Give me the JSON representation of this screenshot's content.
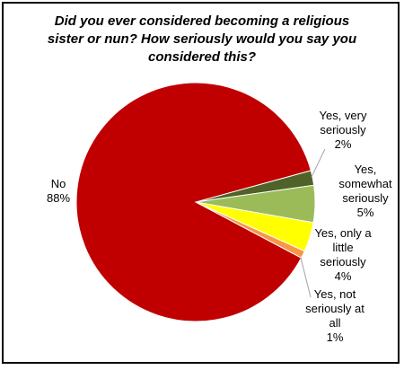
{
  "chart_data": {
    "type": "pie",
    "title_lines": [
      "Did you ever considered becoming a religious",
      "sister or nun? How seriously would you say you",
      "considered this?"
    ],
    "slices": [
      {
        "label_lines": [
          "Yes, very",
          "seriously",
          "2%"
        ],
        "value": 2,
        "color": "#4f6228"
      },
      {
        "label_lines": [
          "Yes,",
          "somewhat",
          "seriously",
          "5%"
        ],
        "value": 5,
        "color": "#9bbb59"
      },
      {
        "label_lines": [
          "Yes, only a",
          "little",
          "seriously",
          "4%"
        ],
        "value": 4,
        "color": "#ffff00"
      },
      {
        "label_lines": [
          "Yes, not",
          "seriously at",
          "all",
          "1%"
        ],
        "value": 1,
        "color": "#f79646"
      },
      {
        "label_lines": [
          "No",
          "88%"
        ],
        "value": 88,
        "color": "#c00000"
      }
    ]
  }
}
